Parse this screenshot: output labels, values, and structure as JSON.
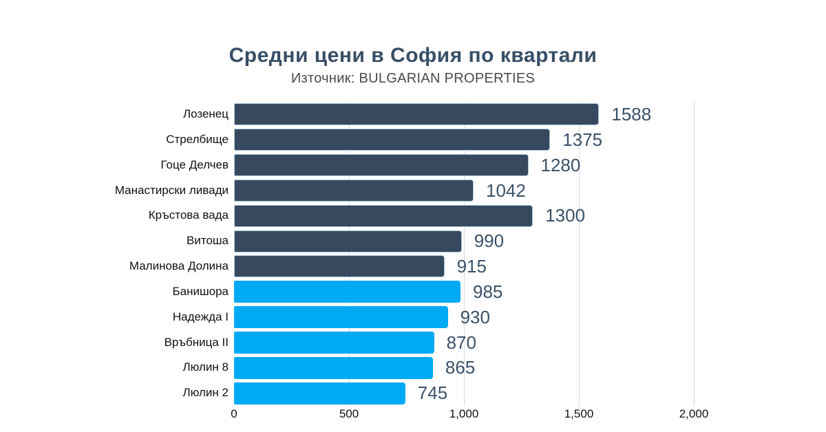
{
  "header": {
    "title": "Средни цени в София по квартали",
    "subtitle": "Източник: BULGARIAN PROPERTIES"
  },
  "colors": {
    "title_color": "#374F66",
    "subtitle_color": "#4A4A4A",
    "dark_bar_color": "#36495E",
    "blue_bar_color": "#00A9F4",
    "bar_border_color": "#A9C7DE",
    "value_color": "#3A5168",
    "gridline_color": "#D9D9D9"
  },
  "chart_data": {
    "type": "bar",
    "orientation": "horizontal",
    "title": "Средни цени в София по квартали",
    "subtitle": "Източник: BULGARIAN PROPERTIES",
    "categories": [
      "Лозенец",
      "Стрелбище",
      "Гоце Делчев",
      "Манастирски ливади",
      "Кръстова вада",
      "Витоша",
      "Малинова Долина",
      "Банишора",
      "Надежда I",
      "Връбница II",
      "Люлин 8",
      "Люлин 2"
    ],
    "values": [
      1588,
      1375,
      1280,
      1042,
      1300,
      990,
      915,
      985,
      930,
      870,
      865,
      745
    ],
    "bar_colors": [
      "dark",
      "dark",
      "dark",
      "dark",
      "dark",
      "dark",
      "dark",
      "blue",
      "blue",
      "blue",
      "blue",
      "blue"
    ],
    "data_labels_shown": true,
    "xlim": [
      0,
      2000
    ],
    "x_ticks": [
      0,
      500,
      1000,
      1500,
      2000
    ],
    "x_tick_labels": [
      "0",
      "500",
      "1,000",
      "1,500",
      "2,000"
    ],
    "grid": "vertical",
    "legend": "none"
  }
}
